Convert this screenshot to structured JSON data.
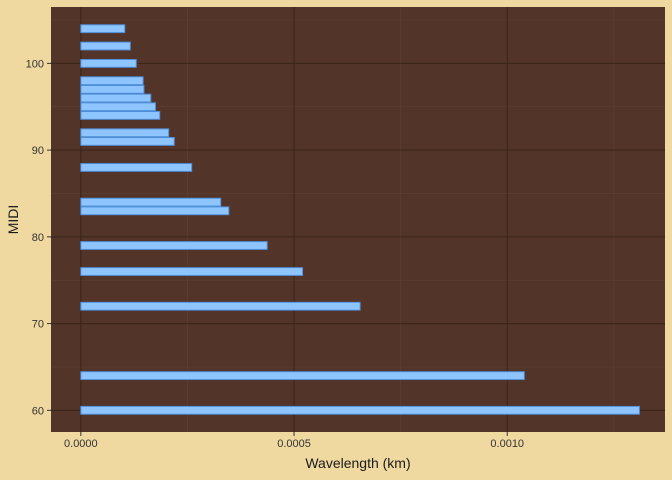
{
  "chart_data": {
    "type": "bar",
    "orientation": "horizontal",
    "xlabel": "Wavelength (km)",
    "ylabel": "MIDI",
    "xlim": [
      -7e-05,
      0.00137
    ],
    "ylim": [
      57.5,
      106.5
    ],
    "xticks": [
      0,
      0.0005,
      0.001
    ],
    "xtick_labels": [
      "0.0000",
      "0.0005",
      "0.0010"
    ],
    "yticks": [
      60,
      70,
      80,
      90,
      100
    ],
    "ytick_labels": [
      "60",
      "70",
      "80",
      "90",
      "100"
    ],
    "grid": true,
    "legend": "none",
    "bar_height_units": 0.9,
    "colors": {
      "background": "#f0d9a0",
      "panel": "#523428",
      "bar_fill": "#8ec5ff",
      "bar_stroke": "#4f8fda",
      "grid_major": "#3a2418",
      "grid_minor": "#5e4234"
    },
    "points": [
      {
        "midi": 60,
        "value": 0.00131
      },
      {
        "midi": 64,
        "value": 0.00104
      },
      {
        "midi": 72,
        "value": 0.000655
      },
      {
        "midi": 76,
        "value": 0.00052
      },
      {
        "midi": 79,
        "value": 0.000437
      },
      {
        "midi": 83,
        "value": 0.000347
      },
      {
        "midi": 84,
        "value": 0.000328
      },
      {
        "midi": 88,
        "value": 0.00026
      },
      {
        "midi": 91,
        "value": 0.000219
      },
      {
        "midi": 92,
        "value": 0.000206
      },
      {
        "midi": 94,
        "value": 0.000185
      },
      {
        "midi": 95,
        "value": 0.000175
      },
      {
        "midi": 96,
        "value": 0.000164
      },
      {
        "midi": 97,
        "value": 0.000148
      },
      {
        "midi": 98,
        "value": 0.000146
      },
      {
        "midi": 100,
        "value": 0.00013
      },
      {
        "midi": 102,
        "value": 0.000116
      },
      {
        "midi": 104,
        "value": 0.000103
      }
    ]
  }
}
